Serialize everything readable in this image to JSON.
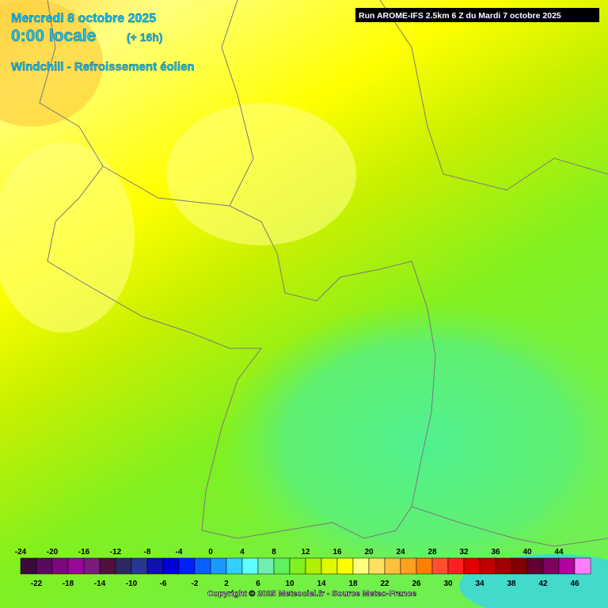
{
  "header": {
    "date": "Mercredi 8 octobre 2025",
    "time": "0:00 locale",
    "lead": "(+ 16h)",
    "parameter": "Windchill - Refroissement éolien",
    "run": "Run AROME-IFS 2.5km 6 Z du Mardi 7 octobre 2025"
  },
  "scale": {
    "values": [
      -24,
      -22,
      -20,
      -18,
      -16,
      -14,
      -12,
      -10,
      -8,
      -6,
      -4,
      -2,
      0,
      2,
      4,
      6,
      8,
      10,
      12,
      14,
      16,
      18,
      20,
      22,
      24,
      26,
      28,
      30,
      32,
      34,
      36,
      38,
      40,
      42,
      44,
      46
    ],
    "colors": [
      "#3c0a3c",
      "#5a0a5a",
      "#7a0a7a",
      "#960a96",
      "#7a1a7a",
      "#501040",
      "#2a2a60",
      "#283890",
      "#1010b0",
      "#0000d8",
      "#0020ff",
      "#0a60ff",
      "#1a9aff",
      "#30d0ff",
      "#60ffff",
      "#70f0b0",
      "#60f060",
      "#80f020",
      "#b0f000",
      "#e0f800",
      "#ffff00",
      "#ffff80",
      "#ffe060",
      "#ffc040",
      "#ffa020",
      "#ff8000",
      "#ff5030",
      "#ff2020",
      "#e00000",
      "#c00000",
      "#a00000",
      "#800000",
      "#600030",
      "#800060",
      "#b000a0",
      "#ff80ff"
    ]
  },
  "footer": {
    "copyright": "Copyright © 2025 Meteociel.fr - Source Meteo-France"
  }
}
